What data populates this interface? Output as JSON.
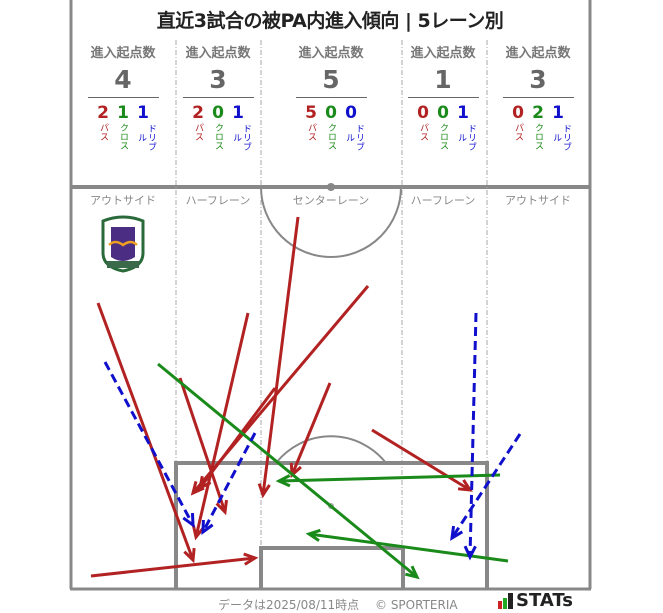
{
  "title": "直近3試合の被PA内進入傾向 | 5レーン別",
  "count_label": "進入起点数",
  "type_labels": {
    "pass": "パス",
    "cross": "クロス",
    "dribble": "ドリブル"
  },
  "colors": {
    "pass": "#b22222",
    "cross": "#1a8a1a",
    "dribble": "#1010cc",
    "text_gray": "#777777"
  },
  "lanes": [
    {
      "name": "アウトサイド",
      "total": "4",
      "pass": "2",
      "cross": "1",
      "dribble": "1"
    },
    {
      "name": "ハーフレーン",
      "total": "3",
      "pass": "2",
      "cross": "0",
      "dribble": "1"
    },
    {
      "name": "センターレーン",
      "total": "5",
      "pass": "5",
      "cross": "0",
      "dribble": "0"
    },
    {
      "name": "ハーフレーン",
      "total": "1",
      "pass": "0",
      "cross": "0",
      "dribble": "1"
    },
    {
      "name": "アウトサイド",
      "total": "3",
      "pass": "0",
      "cross": "2",
      "dribble": "1"
    }
  ],
  "team_logo": "EFC",
  "footer": {
    "data_date": "データは2025/08/11時点",
    "copyright": "© SPORTERIA",
    "brand": "STATs"
  }
}
